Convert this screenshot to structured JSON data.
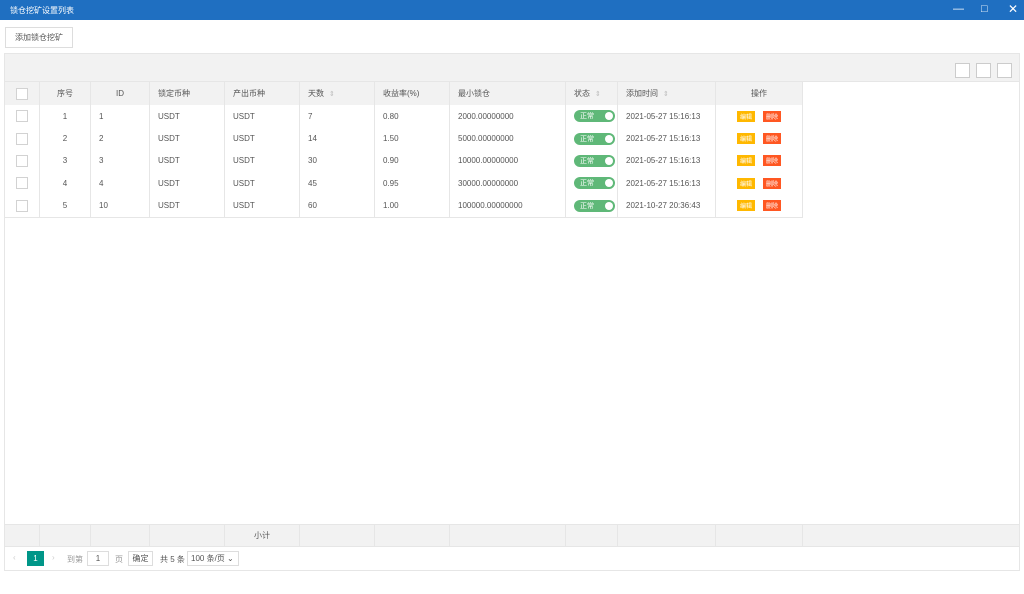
{
  "window": {
    "title": "锁仓挖矿设置列表"
  },
  "toolbar": {
    "add_button": "添加锁仓挖矿"
  },
  "table": {
    "columns": [
      "序号",
      "ID",
      "锁定币种",
      "产出币种",
      "天数",
      "收益率(%)",
      "最小锁仓",
      "状态",
      "添加时间",
      "操作"
    ],
    "sortable": [
      false,
      false,
      false,
      false,
      true,
      false,
      false,
      true,
      true,
      false
    ],
    "rows": [
      [
        "1",
        "1",
        "USDT",
        "USDT",
        "7",
        "0.80",
        "2000.00000000",
        "正常",
        "2021-05-27 15:16:13"
      ],
      [
        "2",
        "2",
        "USDT",
        "USDT",
        "14",
        "1.50",
        "5000.00000000",
        "正常",
        "2021-05-27 15:16:13"
      ],
      [
        "3",
        "3",
        "USDT",
        "USDT",
        "30",
        "0.90",
        "10000.00000000",
        "正常",
        "2021-05-27 15:16:13"
      ],
      [
        "4",
        "4",
        "USDT",
        "USDT",
        "45",
        "0.95",
        "30000.00000000",
        "正常",
        "2021-05-27 15:16:13"
      ],
      [
        "5",
        "10",
        "USDT",
        "USDT",
        "60",
        "1.00",
        "100000.00000000",
        "正常",
        "2021-10-27 20:36:43"
      ]
    ],
    "actions": [
      "编辑",
      "删除"
    ],
    "total_label": "小计"
  },
  "pagination": {
    "current": "1",
    "goto_prefix": "到第",
    "goto_value": "1",
    "goto_suffix": "页",
    "confirm": "确定",
    "total": "共 5 条",
    "page_size": "100 条/页"
  }
}
